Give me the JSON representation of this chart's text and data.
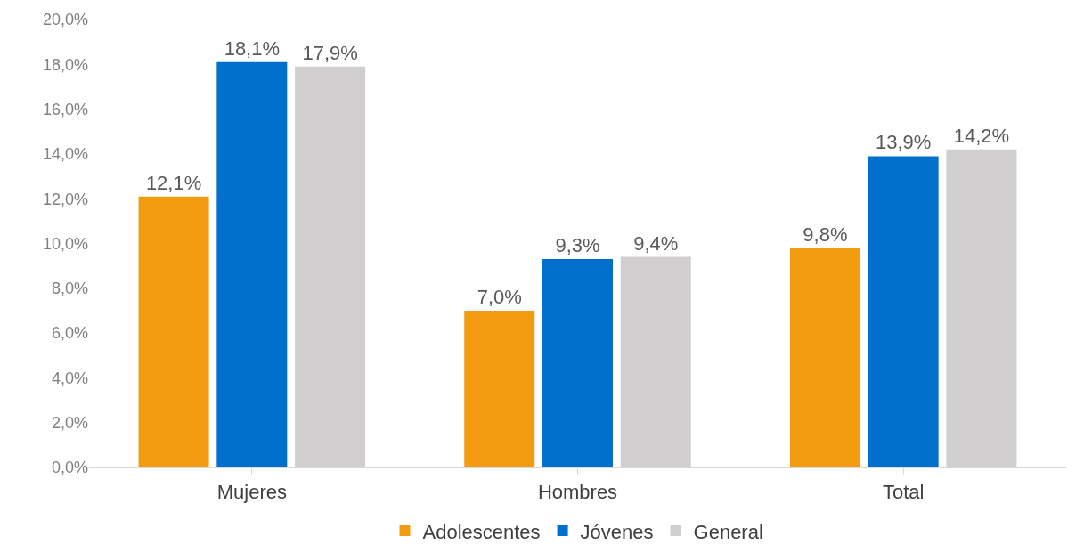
{
  "chart_data": {
    "type": "bar",
    "categories": [
      "Mujeres",
      "Hombres",
      "Total"
    ],
    "series": [
      {
        "name": "Adolescentes",
        "color": "#f39c12",
        "values": [
          12.1,
          7.0,
          9.8
        ],
        "value_labels": [
          "12,1%",
          "7,0%",
          "9,8%"
        ]
      },
      {
        "name": "Jóvenes",
        "color": "#0070cc",
        "values": [
          18.1,
          9.3,
          13.9
        ],
        "value_labels": [
          "18,1%",
          "9,3%",
          "13,9%"
        ]
      },
      {
        "name": "General",
        "color": "#d0cecf",
        "values": [
          17.9,
          9.4,
          14.2
        ],
        "value_labels": [
          "17,9%",
          "9,4%",
          "14,2%"
        ]
      }
    ],
    "ylim": [
      0,
      20
    ],
    "yticks": [
      {
        "value": 0,
        "label": "0,0%"
      },
      {
        "value": 2,
        "label": "2,0%"
      },
      {
        "value": 4,
        "label": "4,0%"
      },
      {
        "value": 6,
        "label": "6,0%"
      },
      {
        "value": 8,
        "label": "8,0%"
      },
      {
        "value": 10,
        "label": "10,0%"
      },
      {
        "value": 12,
        "label": "12,0%"
      },
      {
        "value": 14,
        "label": "14,0%"
      },
      {
        "value": 16,
        "label": "16,0%"
      },
      {
        "value": 18,
        "label": "18,0%"
      },
      {
        "value": 20,
        "label": "20,0%"
      }
    ],
    "grid": false,
    "legend": "bottom"
  }
}
